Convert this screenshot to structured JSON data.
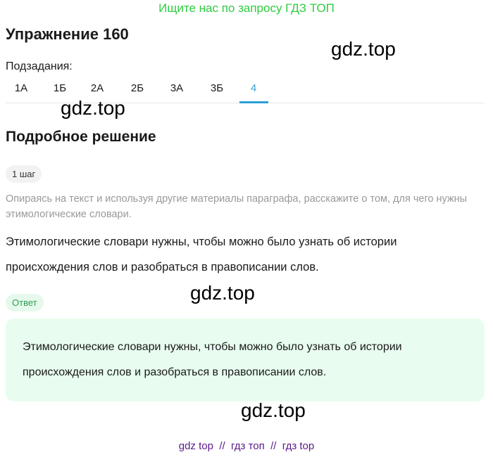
{
  "promo": "Ищите нас по запросу ГДЗ ТОП",
  "title": "Упражнение 160",
  "subtasks_label": "Подзадания:",
  "tabs": [
    "1А",
    "1Б",
    "2А",
    "2Б",
    "3А",
    "3Б",
    "4"
  ],
  "active_tab": "4",
  "section_title": "Подробное решение",
  "step_badge": "1 шаг",
  "question": "Опираясь на текст и используя другие материалы параграфа, расскажите о том, для чего нужны этимологические словари.",
  "solution": "Этимологические словари нужны, чтобы можно было узнать об истории происхождения слов и разобраться в правописании слов.",
  "answer_badge": "Ответ",
  "answer": "Этимологические словари нужны, чтобы можно было узнать об истории происхождения слов и разобраться в правописании слов.",
  "watermark": "gdz.top",
  "footer_links": [
    "gdz top",
    "гдз топ",
    "гдз top"
  ],
  "footer_separator": "//",
  "colors": {
    "accent": "#2aa0d8",
    "promo": "#2ecc40",
    "answer_bg": "#e8fdef",
    "link": "#5a1a8a"
  }
}
